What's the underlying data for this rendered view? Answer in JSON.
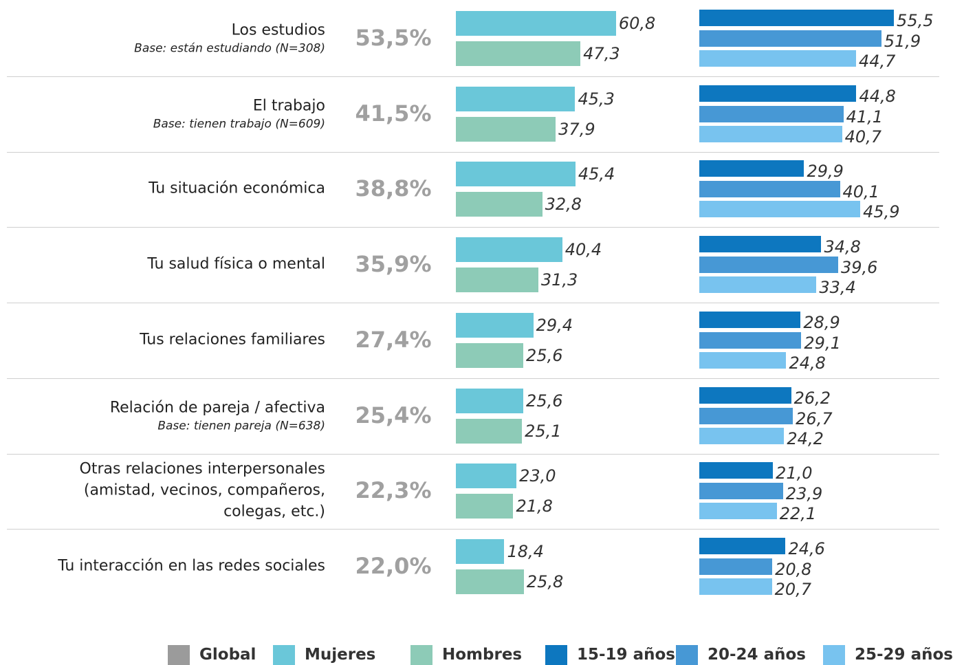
{
  "chart_data": {
    "type": "bar",
    "categories": [
      "Los estudios",
      "El trabajo",
      "Tu situación económica",
      "Tu salud física o mental",
      "Tus relaciones familiares",
      "Relación de pareja / afectiva",
      "Otras relaciones interpersonales\n(amistad, vecinos, compañeros,\ncolegas, etc.)",
      "Tu interacción en las redes sociales"
    ],
    "notes": [
      "Base: están estudiando (N=308)",
      "Base: tienen trabajo (N=609)",
      null,
      null,
      null,
      "Base: tienen pareja (N=638)",
      null,
      null
    ],
    "series": [
      {
        "name": "Global",
        "color": "#9b9b9b",
        "values": [
          53.5,
          41.5,
          38.8,
          35.9,
          27.4,
          25.4,
          22.3,
          22.0
        ],
        "value_labels": [
          "53,5%",
          "41,5%",
          "38,8%",
          "35,9%",
          "27,4%",
          "25,4%",
          "22,3%",
          "22,0%"
        ]
      },
      {
        "name": "Mujeres",
        "color": "#6ac7d9",
        "values": [
          60.8,
          45.3,
          45.4,
          40.4,
          29.4,
          25.6,
          23.0,
          18.4
        ],
        "value_labels": [
          "60,8",
          "45,3",
          "45,4",
          "40,4",
          "29,4",
          "25,6",
          "23,0",
          "18,4"
        ]
      },
      {
        "name": "Hombres",
        "color": "#8dcbb7",
        "values": [
          47.3,
          37.9,
          32.8,
          31.3,
          25.6,
          25.1,
          21.8,
          25.8
        ],
        "value_labels": [
          "47,3",
          "37,9",
          "32,8",
          "31,3",
          "25,6",
          "25,1",
          "21,8",
          "25,8"
        ]
      },
      {
        "name": "15-19 años",
        "color": "#0d77bf",
        "values": [
          55.5,
          44.8,
          29.9,
          34.8,
          28.9,
          26.2,
          21.0,
          24.6
        ],
        "value_labels": [
          "55,5",
          "44,8",
          "29,9",
          "34,8",
          "28,9",
          "26,2",
          "21,0",
          "24,6"
        ]
      },
      {
        "name": "20-24 años",
        "color": "#4798d5",
        "values": [
          51.9,
          41.1,
          40.1,
          39.6,
          29.1,
          26.7,
          23.9,
          20.8
        ],
        "value_labels": [
          "51,9",
          "41,1",
          "40,1",
          "39,6",
          "29,1",
          "26,7",
          "23,9",
          "20,8"
        ]
      },
      {
        "name": "25-29 años",
        "color": "#78c3ef",
        "values": [
          44.7,
          40.7,
          45.9,
          33.4,
          24.8,
          24.2,
          22.1,
          20.7
        ],
        "value_labels": [
          "44,7",
          "40,7",
          "45,9",
          "33,4",
          "24,8",
          "24,2",
          "22,1",
          "20,7"
        ]
      }
    ]
  }
}
